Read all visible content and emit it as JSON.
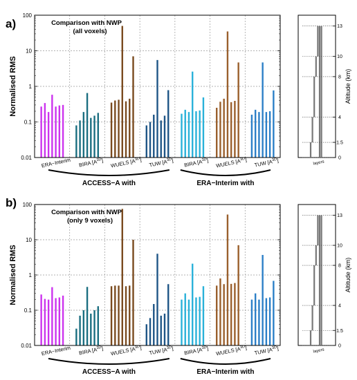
{
  "chart_data": [
    {
      "panel": "a)",
      "type": "bar",
      "annotation": [
        "Comparison with NWP",
        "(all voxels)"
      ],
      "ylabel": "Normalised RMS",
      "yscale": "log",
      "ylim": [
        0.01,
        100
      ],
      "yticks": [
        "0.01",
        "0.1",
        "1",
        "10",
        "100"
      ],
      "groups": [
        {
          "label": "ERA−Interim",
          "base": "ERA−Interim",
          "sup": "",
          "color": "#cc33ee",
          "values": [
            0.27,
            0.34,
            0.19,
            0.58,
            0.27,
            0.29,
            0.3
          ]
        },
        {
          "label": "BIRA [A^3D]",
          "base": "BIRA [A",
          "sup": "3D",
          "color": "#1a6e80",
          "values": [
            0.08,
            0.11,
            0.19,
            0.65,
            0.13,
            0.15,
            0.18
          ]
        },
        {
          "label": "WUELS [A^3D]",
          "base": "WUELS [A",
          "sup": "3D",
          "color": "#7a4a1e",
          "values": [
            0.35,
            0.4,
            0.42,
            50,
            0.38,
            0.45,
            7
          ]
        },
        {
          "label": "TUW [A^3D]",
          "base": "TUW [A",
          "sup": "3D",
          "color": "#1e5586",
          "values": [
            0.08,
            0.1,
            0.16,
            5.5,
            0.11,
            0.15,
            0.78
          ]
        },
        {
          "label": "BIRA [A^3D]",
          "base": "BIRA [A",
          "sup": "3D",
          "color": "#29b1d9",
          "values": [
            0.17,
            0.22,
            0.19,
            2.6,
            0.2,
            0.21,
            0.49
          ]
        },
        {
          "label": "WUELS [A^3D]",
          "base": "WUELS [A",
          "sup": "3D",
          "color": "#9a5f2c",
          "values": [
            0.25,
            0.37,
            0.45,
            35,
            0.36,
            0.39,
            4.7
          ]
        },
        {
          "label": "TUW [A^3D]",
          "base": "TUW [A",
          "sup": "3D",
          "color": "#2b7fc7",
          "values": [
            0.16,
            0.22,
            0.19,
            4.7,
            0.19,
            0.2,
            0.77
          ]
        }
      ],
      "super_labels": [
        "ACCESS−A with",
        "ERA−Interim with"
      ]
    },
    {
      "panel": "b)",
      "type": "bar",
      "annotation": [
        "Comparison with NWP",
        "(only 9 voxels)"
      ],
      "ylabel": "Normalised RMS",
      "yscale": "log",
      "ylim": [
        0.01,
        100
      ],
      "yticks": [
        "0.01",
        "0.1",
        "1",
        "10",
        "100"
      ],
      "groups": [
        {
          "label": "ERA−Interim",
          "base": "ERA−Interim",
          "sup": "",
          "color": "#cc33ee",
          "values": [
            0.28,
            0.21,
            0.2,
            0.45,
            0.22,
            0.23,
            0.26
          ]
        },
        {
          "label": "BIRA [A^3D]",
          "base": "BIRA [A",
          "sup": "3D",
          "color": "#1a6e80",
          "values": [
            0.03,
            0.07,
            0.1,
            0.46,
            0.08,
            0.1,
            0.13
          ]
        },
        {
          "label": "WUELS [A^3D]",
          "base": "WUELS [A",
          "sup": "3D",
          "color": "#7a4a1e",
          "values": [
            0.48,
            0.5,
            0.5,
            75,
            0.48,
            0.5,
            10
          ]
        },
        {
          "label": "TUW [A^3D]",
          "base": "TUW [A",
          "sup": "3D",
          "color": "#1e5586",
          "values": [
            0.04,
            0.06,
            0.15,
            4,
            0.07,
            0.08,
            0.55
          ]
        },
        {
          "label": "BIRA [A^3D]",
          "base": "BIRA [A",
          "sup": "3D",
          "color": "#29b1d9",
          "values": [
            0.2,
            0.3,
            0.2,
            2.1,
            0.23,
            0.24,
            0.48
          ]
        },
        {
          "label": "WUELS [A^3D]",
          "base": "WUELS [A",
          "sup": "3D",
          "color": "#9a5f2c",
          "values": [
            0.5,
            0.8,
            0.55,
            52,
            0.56,
            0.59,
            7
          ]
        },
        {
          "label": "TUW [A^3D]",
          "base": "TUW [A",
          "sup": "3D",
          "color": "#2b7fc7",
          "values": [
            0.2,
            0.3,
            0.2,
            3.7,
            0.22,
            0.23,
            0.68
          ]
        }
      ],
      "super_labels": [
        "ACCESS−A with",
        "ERA−Interim with"
      ]
    }
  ],
  "altitude_inset": {
    "ylabel": "Altitude (km)",
    "xlabel": "layers",
    "ticks": [
      "0",
      "1.5",
      "4",
      "8",
      "10",
      "13"
    ],
    "layers": [
      {
        "bottom": 0,
        "top": 1.5
      },
      {
        "bottom": 1.5,
        "top": 4
      },
      {
        "bottom": 4,
        "top": 8
      },
      {
        "bottom": 8,
        "top": 10
      },
      {
        "bottom": 10,
        "top": 13
      },
      {
        "bottom": 0,
        "top": 13
      },
      {
        "bottom": 0,
        "top": 13
      }
    ],
    "bar_color": "#777777"
  }
}
